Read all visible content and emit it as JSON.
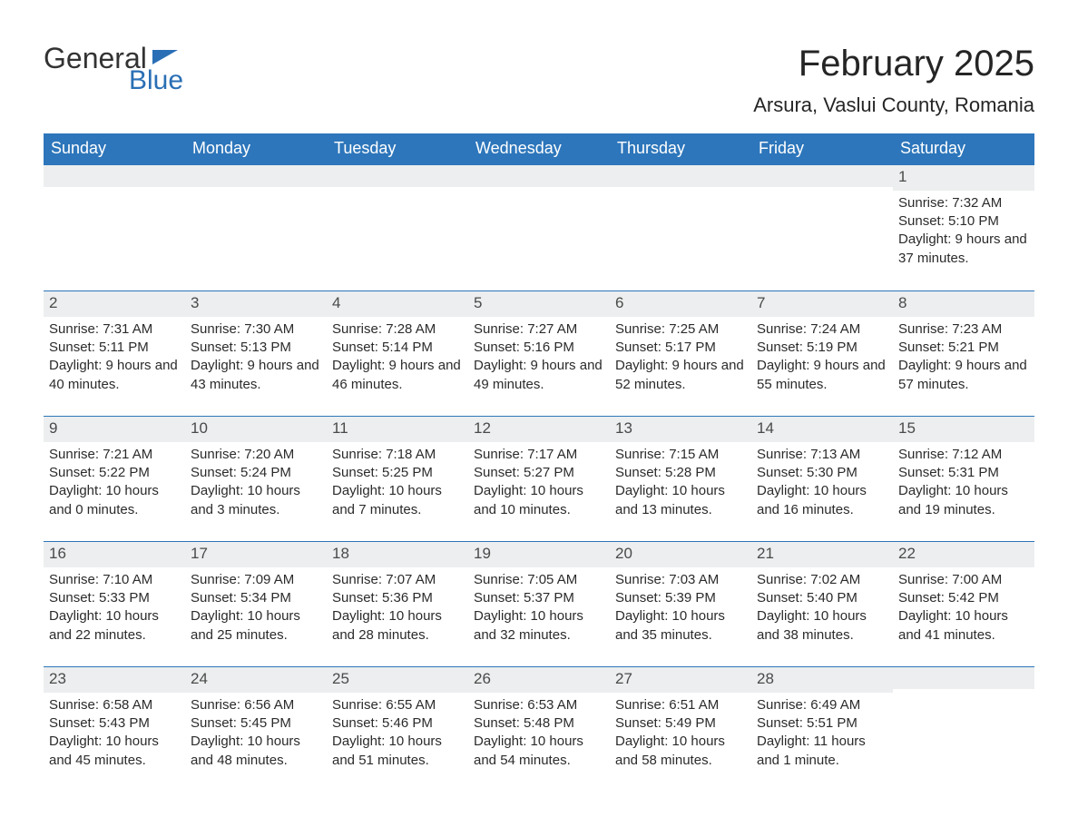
{
  "logo": {
    "line1": "General",
    "line2": "Blue"
  },
  "title": "February 2025",
  "location": "Arsura, Vaslui County, Romania",
  "colors": {
    "header_bg": "#2d76bb",
    "header_text": "#ffffff",
    "band_bg": "#eceeef",
    "rule": "#2d76bb",
    "logo_accent": "#2a6fb5",
    "body_text": "#2b2b2b"
  },
  "dayNames": [
    "Sunday",
    "Monday",
    "Tuesday",
    "Wednesday",
    "Thursday",
    "Friday",
    "Saturday"
  ],
  "labels": {
    "sunrise": "Sunrise:",
    "sunset": "Sunset:",
    "daylight": "Daylight:"
  },
  "weeks": [
    [
      null,
      null,
      null,
      null,
      null,
      null,
      {
        "n": "1",
        "sr": "7:32 AM",
        "ss": "5:10 PM",
        "dl": "9 hours and 37 minutes."
      }
    ],
    [
      {
        "n": "2",
        "sr": "7:31 AM",
        "ss": "5:11 PM",
        "dl": "9 hours and 40 minutes."
      },
      {
        "n": "3",
        "sr": "7:30 AM",
        "ss": "5:13 PM",
        "dl": "9 hours and 43 minutes."
      },
      {
        "n": "4",
        "sr": "7:28 AM",
        "ss": "5:14 PM",
        "dl": "9 hours and 46 minutes."
      },
      {
        "n": "5",
        "sr": "7:27 AM",
        "ss": "5:16 PM",
        "dl": "9 hours and 49 minutes."
      },
      {
        "n": "6",
        "sr": "7:25 AM",
        "ss": "5:17 PM",
        "dl": "9 hours and 52 minutes."
      },
      {
        "n": "7",
        "sr": "7:24 AM",
        "ss": "5:19 PM",
        "dl": "9 hours and 55 minutes."
      },
      {
        "n": "8",
        "sr": "7:23 AM",
        "ss": "5:21 PM",
        "dl": "9 hours and 57 minutes."
      }
    ],
    [
      {
        "n": "9",
        "sr": "7:21 AM",
        "ss": "5:22 PM",
        "dl": "10 hours and 0 minutes."
      },
      {
        "n": "10",
        "sr": "7:20 AM",
        "ss": "5:24 PM",
        "dl": "10 hours and 3 minutes."
      },
      {
        "n": "11",
        "sr": "7:18 AM",
        "ss": "5:25 PM",
        "dl": "10 hours and 7 minutes."
      },
      {
        "n": "12",
        "sr": "7:17 AM",
        "ss": "5:27 PM",
        "dl": "10 hours and 10 minutes."
      },
      {
        "n": "13",
        "sr": "7:15 AM",
        "ss": "5:28 PM",
        "dl": "10 hours and 13 minutes."
      },
      {
        "n": "14",
        "sr": "7:13 AM",
        "ss": "5:30 PM",
        "dl": "10 hours and 16 minutes."
      },
      {
        "n": "15",
        "sr": "7:12 AM",
        "ss": "5:31 PM",
        "dl": "10 hours and 19 minutes."
      }
    ],
    [
      {
        "n": "16",
        "sr": "7:10 AM",
        "ss": "5:33 PM",
        "dl": "10 hours and 22 minutes."
      },
      {
        "n": "17",
        "sr": "7:09 AM",
        "ss": "5:34 PM",
        "dl": "10 hours and 25 minutes."
      },
      {
        "n": "18",
        "sr": "7:07 AM",
        "ss": "5:36 PM",
        "dl": "10 hours and 28 minutes."
      },
      {
        "n": "19",
        "sr": "7:05 AM",
        "ss": "5:37 PM",
        "dl": "10 hours and 32 minutes."
      },
      {
        "n": "20",
        "sr": "7:03 AM",
        "ss": "5:39 PM",
        "dl": "10 hours and 35 minutes."
      },
      {
        "n": "21",
        "sr": "7:02 AM",
        "ss": "5:40 PM",
        "dl": "10 hours and 38 minutes."
      },
      {
        "n": "22",
        "sr": "7:00 AM",
        "ss": "5:42 PM",
        "dl": "10 hours and 41 minutes."
      }
    ],
    [
      {
        "n": "23",
        "sr": "6:58 AM",
        "ss": "5:43 PM",
        "dl": "10 hours and 45 minutes."
      },
      {
        "n": "24",
        "sr": "6:56 AM",
        "ss": "5:45 PM",
        "dl": "10 hours and 48 minutes."
      },
      {
        "n": "25",
        "sr": "6:55 AM",
        "ss": "5:46 PM",
        "dl": "10 hours and 51 minutes."
      },
      {
        "n": "26",
        "sr": "6:53 AM",
        "ss": "5:48 PM",
        "dl": "10 hours and 54 minutes."
      },
      {
        "n": "27",
        "sr": "6:51 AM",
        "ss": "5:49 PM",
        "dl": "10 hours and 58 minutes."
      },
      {
        "n": "28",
        "sr": "6:49 AM",
        "ss": "5:51 PM",
        "dl": "11 hours and 1 minute."
      },
      null
    ]
  ]
}
